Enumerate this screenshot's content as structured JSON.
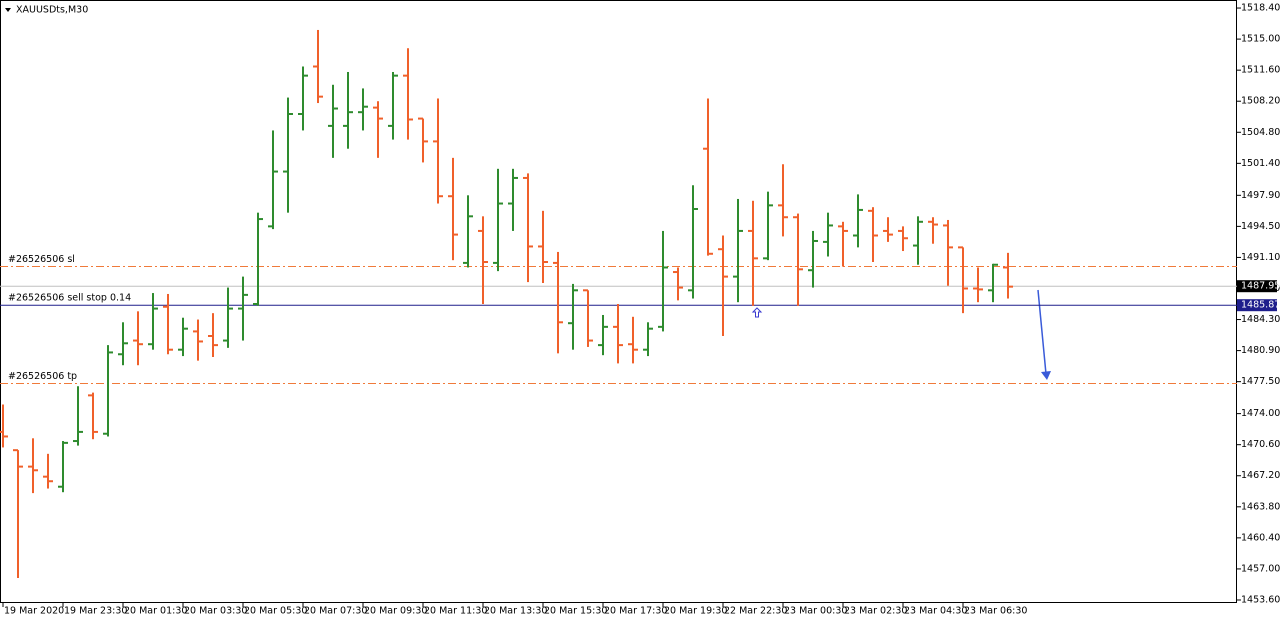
{
  "chart_data": {
    "type": "ohlc",
    "title": "XAUUSDts,M30",
    "categories": [
      "19 Mar 2020",
      null,
      null,
      null,
      "19 Mar 23:30",
      null,
      null,
      null,
      "20 Mar 01:30",
      null,
      null,
      null,
      "20 Mar 03:30",
      null,
      null,
      null,
      "20 Mar 05:30",
      null,
      null,
      null,
      "20 Mar 07:30",
      null,
      null,
      null,
      "20 Mar 09:30",
      null,
      null,
      null,
      "20 Mar 11:30",
      null,
      null,
      null,
      "20 Mar 13:30",
      null,
      null,
      null,
      "20 Mar 15:30",
      null,
      null,
      null,
      "20 Mar 17:30",
      null,
      null,
      null,
      "20 Mar 19:30",
      null,
      null,
      null,
      "22 Mar 22:30",
      null,
      null,
      null,
      "23 Mar 00:30",
      null,
      null,
      null,
      "23 Mar 02:30",
      null,
      null,
      null,
      "23 Mar 04:30",
      null,
      null,
      null,
      "23 Mar 06:30",
      null,
      null,
      null
    ],
    "open": [
      1472.0,
      1470.0,
      1468.2,
      1467.1,
      1466.0,
      1471.0,
      1476.0,
      1471.8,
      1480.5,
      1482.0,
      1481.6,
      1485.7,
      1481.0,
      1483.0,
      1482.5,
      1482.0,
      1485.5,
      1486.0,
      1494.5,
      1500.5,
      1506.8,
      1512.0,
      1505.5,
      1505.5,
      1507.0,
      1507.5,
      1505.5,
      1511.0,
      1506.3,
      1503.8,
      1497.8,
      1490.5,
      1494.0,
      1490.5,
      1497.0,
      1499.8,
      1492.3,
      1490.5,
      1483.9,
      1487.5,
      1481.5,
      1483.5,
      1481.6,
      1481.0,
      1483.5,
      1489.5,
      1487.5,
      1503.0,
      1492.0,
      1489.0,
      1494.0,
      1491.0,
      1496.8,
      1495.5,
      1489.7,
      1492.8,
      1494.5,
      1493.5,
      1496.2,
      1494.0,
      1494.0,
      1492.4,
      1495.0,
      1494.6,
      1492.2,
      1487.7,
      1487.5,
      1490.0
    ],
    "high": [
      1475.0,
      1470.0,
      1471.3,
      1469.6,
      1471.0,
      1477.0,
      1476.3,
      1481.5,
      1484.0,
      1485.2,
      1487.2,
      1487.1,
      1484.5,
      1484.3,
      1485.0,
      1487.8,
      1489.0,
      1496.0,
      1505.0,
      1508.6,
      1512.0,
      1516.0,
      1510.0,
      1511.4,
      1509.6,
      1508.2,
      1511.4,
      1514.0,
      1506.3,
      1508.5,
      1502.0,
      1497.9,
      1495.6,
      1500.8,
      1500.8,
      1500.3,
      1496.2,
      1491.7,
      1488.2,
      1487.5,
      1484.8,
      1486.0,
      1484.6,
      1484.0,
      1494.0,
      1490.0,
      1499.0,
      1508.5,
      1493.5,
      1497.5,
      1497.3,
      1498.3,
      1501.3,
      1495.9,
      1494.0,
      1496.0,
      1495.0,
      1498.0,
      1496.6,
      1495.5,
      1494.5,
      1495.6,
      1495.5,
      1495.2,
      1492.2,
      1490.0,
      1490.4,
      1491.6
    ],
    "low": [
      1470.3,
      1456.0,
      1465.3,
      1465.8,
      1465.4,
      1470.5,
      1471.2,
      1471.5,
      1479.3,
      1479.3,
      1481.0,
      1480.5,
      1480.3,
      1479.8,
      1480.2,
      1481.2,
      1482.0,
      1485.8,
      1494.2,
      1496.0,
      1505.0,
      1508.0,
      1502.0,
      1503.0,
      1505.0,
      1502.0,
      1504.0,
      1504.0,
      1501.5,
      1497.0,
      1490.8,
      1490.0,
      1486.0,
      1489.6,
      1494.0,
      1488.4,
      1488.3,
      1480.6,
      1481.0,
      1481.3,
      1480.4,
      1479.5,
      1479.5,
      1480.3,
      1483.0,
      1486.4,
      1486.6,
      1491.3,
      1482.5,
      1486.2,
      1485.8,
      1490.8,
      1493.4,
      1485.8,
      1487.8,
      1491.2,
      1490.1,
      1492.2,
      1490.6,
      1492.8,
      1491.8,
      1490.3,
      1492.6,
      1488.0,
      1485.0,
      1486.2,
      1486.2,
      1486.6
    ],
    "close": [
      1471.5,
      1468.2,
      1467.8,
      1466.6,
      1470.8,
      1472.0,
      1472.0,
      1480.7,
      1481.7,
      1481.6,
      1485.5,
      1481.0,
      1483.3,
      1481.9,
      1481.5,
      1485.5,
      1487.0,
      1495.3,
      1500.5,
      1506.8,
      1511.0,
      1508.7,
      1507.4,
      1507.0,
      1507.6,
      1506.3,
      1511.0,
      1506.2,
      1503.8,
      1497.8,
      1493.6,
      1495.6,
      1490.6,
      1497.0,
      1499.8,
      1492.3,
      1490.6,
      1484.0,
      1487.5,
      1482.0,
      1483.5,
      1481.5,
      1481.0,
      1483.3,
      1490.0,
      1487.8,
      1496.4,
      1491.5,
      1489.0,
      1494.0,
      1491.0,
      1496.8,
      1495.5,
      1489.8,
      1492.9,
      1494.6,
      1494.0,
      1496.3,
      1493.5,
      1493.6,
      1493.2,
      1495.0,
      1494.7,
      1492.2,
      1487.7,
      1487.6,
      1490.3,
      1487.9
    ],
    "up_color": "#2e8b2e",
    "down_color": "#f0602a",
    "ylim": [
      1453.27,
      1519.28
    ],
    "yticks": [
      {
        "value": 1518.4,
        "label": "1518.40"
      },
      {
        "value": 1515.0,
        "label": "1515.00"
      },
      {
        "value": 1511.6,
        "label": "1511.60"
      },
      {
        "value": 1508.2,
        "label": "1508.20"
      },
      {
        "value": 1504.8,
        "label": "1504.80"
      },
      {
        "value": 1501.4,
        "label": "1501.40"
      },
      {
        "value": 1497.9,
        "label": "1497.90"
      },
      {
        "value": 1494.5,
        "label": "1494.50"
      },
      {
        "value": 1491.1,
        "label": "1491.10"
      },
      {
        "value": 1487.7,
        "label": "1487.70"
      },
      {
        "value": 1484.3,
        "label": "1484.30"
      },
      {
        "value": 1480.9,
        "label": "1480.90"
      },
      {
        "value": 1477.5,
        "label": "1477.50"
      },
      {
        "value": 1474.0,
        "label": "1474.00"
      },
      {
        "value": 1470.6,
        "label": "1470.60"
      },
      {
        "value": 1467.2,
        "label": "1467.20"
      },
      {
        "value": 1463.8,
        "label": "1463.80"
      },
      {
        "value": 1460.4,
        "label": "1460.40"
      },
      {
        "value": 1457.0,
        "label": "1457.00"
      },
      {
        "value": 1453.6,
        "label": "1453.60"
      }
    ],
    "current_price": 1487.95,
    "levels": [
      {
        "label": "#26526506 sl",
        "value": 1490.1,
        "color": "#f07a3a",
        "style": "dashdot"
      },
      {
        "label": "#26526506 sell stop 0.14",
        "value": 1485.87,
        "color": "#1e1e8c",
        "style": "solid",
        "show_value": true
      },
      {
        "label": "#26526506 tp",
        "value": 1477.3,
        "color": "#f07a3a",
        "style": "dashdot"
      }
    ]
  }
}
